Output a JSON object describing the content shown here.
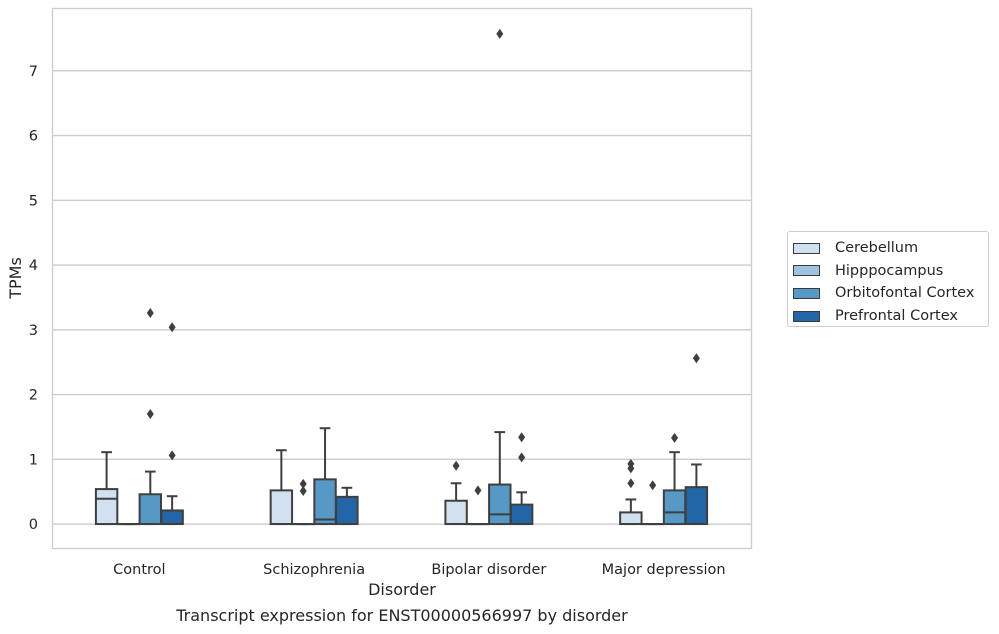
{
  "chart_data": {
    "type": "box",
    "xlabel": "Disorder",
    "ylabel": "TPMs",
    "caption": "Transcript expression for ENST00000566997 by disorder",
    "categories": [
      "Control",
      "Schizophrenia",
      "Bipolar disorder",
      "Major depression"
    ],
    "ylim": [
      -0.37,
      7.97
    ],
    "yticks": [
      "0",
      "1",
      "2",
      "3",
      "4",
      "5",
      "6",
      "7"
    ],
    "grid": true,
    "legend_position": "right",
    "series": [
      {
        "name": "Cerebellum",
        "color": "#d1e1ef",
        "boxes": [
          {
            "q1": 0,
            "median": 0.39,
            "q3": 0.54,
            "whisker_low": 0,
            "whisker_high": 1.11,
            "outliers": []
          },
          {
            "q1": 0,
            "median": 0,
            "q3": 0.52,
            "whisker_low": 0,
            "whisker_high": 1.14,
            "outliers": []
          },
          {
            "q1": 0,
            "median": 0,
            "q3": 0.36,
            "whisker_low": 0,
            "whisker_high": 0.63,
            "outliers": [
              0.9
            ]
          },
          {
            "q1": 0,
            "median": 0,
            "q3": 0.18,
            "whisker_low": 0,
            "whisker_high": 0.38,
            "outliers": [
              0.93,
              0.86,
              0.63
            ]
          }
        ]
      },
      {
        "name": "Hipppocampus",
        "color": "#9dc3df",
        "boxes": [
          {
            "q1": 0,
            "median": 0,
            "q3": 0,
            "whisker_low": 0,
            "whisker_high": 0,
            "outliers": []
          },
          {
            "q1": 0,
            "median": 0,
            "q3": 0,
            "whisker_low": 0,
            "whisker_high": 0,
            "outliers": [
              0.62,
              0.51
            ]
          },
          {
            "q1": 0,
            "median": 0,
            "q3": 0,
            "whisker_low": 0,
            "whisker_high": 0,
            "outliers": [
              0.52
            ]
          },
          {
            "q1": 0,
            "median": 0,
            "q3": 0,
            "whisker_low": 0,
            "whisker_high": 0,
            "outliers": [
              0.6
            ]
          }
        ]
      },
      {
        "name": "Orbitofontal Cortex",
        "color": "#5699c6",
        "boxes": [
          {
            "q1": 0,
            "median": 0,
            "q3": 0.46,
            "whisker_low": 0,
            "whisker_high": 0.81,
            "outliers": [
              3.26,
              1.7
            ]
          },
          {
            "q1": 0,
            "median": 0.07,
            "q3": 0.69,
            "whisker_low": 0,
            "whisker_high": 1.48,
            "outliers": []
          },
          {
            "q1": 0,
            "median": 0.15,
            "q3": 0.61,
            "whisker_low": 0,
            "whisker_high": 1.42,
            "outliers": [
              7.57
            ]
          },
          {
            "q1": 0,
            "median": 0.18,
            "q3": 0.52,
            "whisker_low": 0,
            "whisker_high": 1.11,
            "outliers": [
              1.33
            ]
          }
        ]
      },
      {
        "name": "Prefrontal Cortex",
        "color": "#2366a8",
        "boxes": [
          {
            "q1": 0,
            "median": 0,
            "q3": 0.21,
            "whisker_low": 0,
            "whisker_high": 0.43,
            "outliers": [
              3.04,
              1.06
            ]
          },
          {
            "q1": 0,
            "median": 0,
            "q3": 0.42,
            "whisker_low": 0,
            "whisker_high": 0.56,
            "outliers": []
          },
          {
            "q1": 0,
            "median": 0,
            "q3": 0.3,
            "whisker_low": 0,
            "whisker_high": 0.49,
            "outliers": [
              1.34,
              1.03
            ]
          },
          {
            "q1": 0,
            "median": 0,
            "q3": 0.57,
            "whisker_low": 0,
            "whisker_high": 0.92,
            "outliers": [
              2.56
            ]
          }
        ]
      }
    ]
  }
}
